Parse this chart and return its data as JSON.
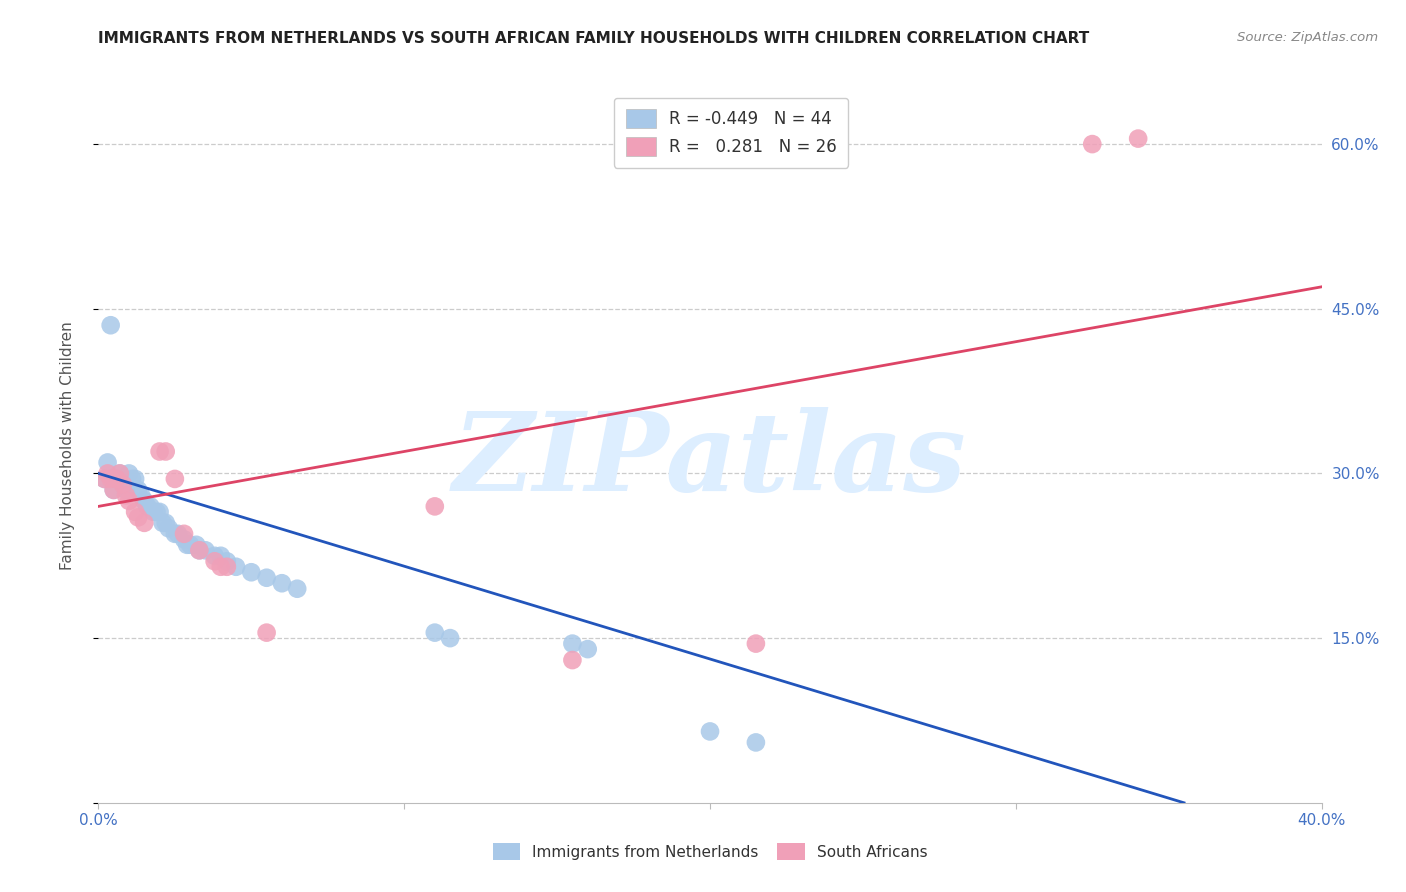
{
  "title": "IMMIGRANTS FROM NETHERLANDS VS SOUTH AFRICAN FAMILY HOUSEHOLDS WITH CHILDREN CORRELATION CHART",
  "source": "Source: ZipAtlas.com",
  "ylabel": "Family Households with Children",
  "xlim": [
    0.0,
    0.4
  ],
  "ylim": [
    0.0,
    0.65
  ],
  "yticks": [
    0.0,
    0.15,
    0.3,
    0.45,
    0.6
  ],
  "xticks": [
    0.0,
    0.1,
    0.2,
    0.3,
    0.4
  ],
  "xtick_labels": [
    "0.0%",
    "",
    "",
    "",
    "40.0%"
  ],
  "blue_R": -0.449,
  "blue_N": 44,
  "pink_R": 0.281,
  "pink_N": 26,
  "blue_color": "#a8c8e8",
  "pink_color": "#f0a0b8",
  "blue_line_color": "#2255bb",
  "pink_line_color": "#dd4466",
  "watermark": "ZIPatlas",
  "watermark_color": "#ddeeff",
  "blue_scatter_x": [
    0.002,
    0.003,
    0.004,
    0.005,
    0.006,
    0.007,
    0.008,
    0.009,
    0.01,
    0.011,
    0.012,
    0.013,
    0.014,
    0.015,
    0.016,
    0.017,
    0.018,
    0.019,
    0.02,
    0.021,
    0.022,
    0.023,
    0.025,
    0.026,
    0.028,
    0.029,
    0.03,
    0.032,
    0.033,
    0.035,
    0.038,
    0.04,
    0.042,
    0.045,
    0.05,
    0.055,
    0.06,
    0.065,
    0.11,
    0.115,
    0.155,
    0.16,
    0.2,
    0.215
  ],
  "blue_scatter_y": [
    0.295,
    0.31,
    0.435,
    0.285,
    0.295,
    0.3,
    0.295,
    0.285,
    0.3,
    0.295,
    0.295,
    0.285,
    0.28,
    0.275,
    0.27,
    0.27,
    0.265,
    0.265,
    0.265,
    0.255,
    0.255,
    0.25,
    0.245,
    0.245,
    0.24,
    0.235,
    0.235,
    0.235,
    0.23,
    0.23,
    0.225,
    0.225,
    0.22,
    0.215,
    0.21,
    0.205,
    0.2,
    0.195,
    0.155,
    0.15,
    0.145,
    0.14,
    0.065,
    0.055
  ],
  "pink_scatter_x": [
    0.002,
    0.003,
    0.004,
    0.005,
    0.006,
    0.007,
    0.008,
    0.009,
    0.01,
    0.012,
    0.013,
    0.015,
    0.02,
    0.022,
    0.025,
    0.028,
    0.033,
    0.038,
    0.04,
    0.042,
    0.055,
    0.11,
    0.155,
    0.215,
    0.325,
    0.34
  ],
  "pink_scatter_y": [
    0.295,
    0.3,
    0.295,
    0.285,
    0.295,
    0.3,
    0.29,
    0.28,
    0.275,
    0.265,
    0.26,
    0.255,
    0.32,
    0.32,
    0.295,
    0.245,
    0.23,
    0.22,
    0.215,
    0.215,
    0.155,
    0.27,
    0.13,
    0.145,
    0.6,
    0.605
  ],
  "blue_trend_x": [
    0.0,
    0.355
  ],
  "blue_trend_y": [
    0.3,
    0.0
  ],
  "pink_trend_x": [
    0.0,
    0.4
  ],
  "pink_trend_y": [
    0.27,
    0.47
  ],
  "background_color": "#ffffff"
}
